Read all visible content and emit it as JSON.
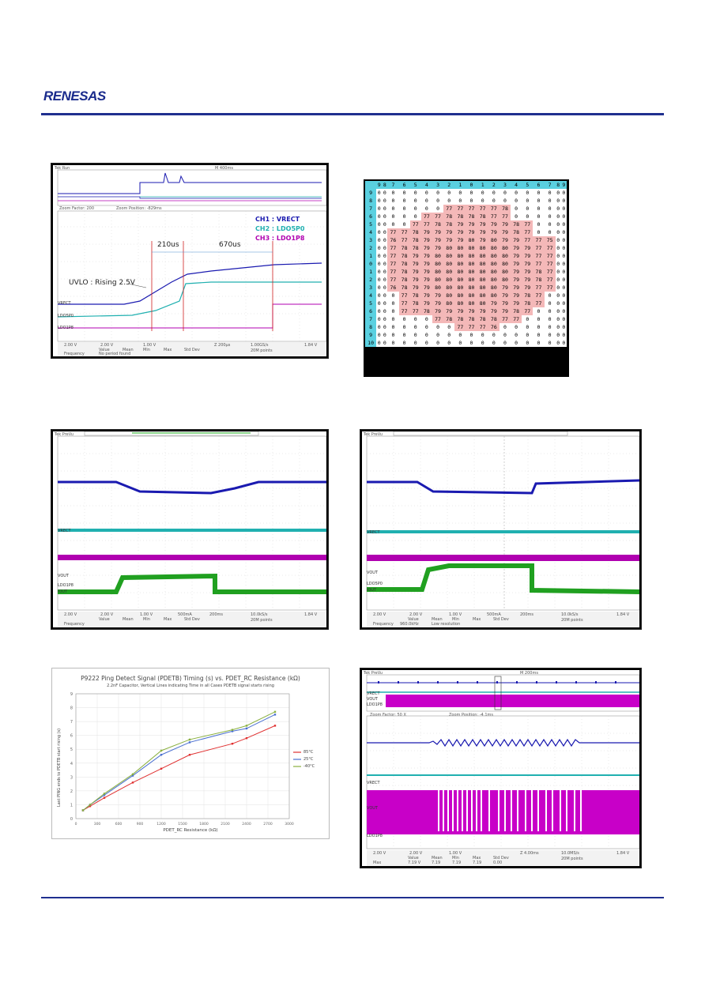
{
  "header": {
    "logo_text": "RENESAS"
  },
  "fig1": {
    "top_bar": "Tek  Run",
    "time_readout": "M 400ms",
    "zoom_factor": "Zoom Factor: 200",
    "zoom_position": "Zoom Position: -829ms",
    "ch_labels": [
      "VRECT",
      "LDO5P0",
      "LDO1P8"
    ],
    "annotations": {
      "t1": "210us",
      "t2": "670us",
      "uvlo": "UVLO : Rising 2.5V"
    },
    "legend": [
      "CH1 : VRECT",
      "CH2 : LDO5P0",
      "CH3 : LDO1P8"
    ],
    "bottom": [
      "2.00 V",
      "2.00 V",
      "1.00 V",
      "Z 200µs",
      "1.00GS/s",
      "20M points",
      "1.84 V"
    ],
    "meas_headers": [
      "Value",
      "Mean",
      "Min",
      "Max",
      "Std Dev"
    ],
    "meas_row": [
      "Frequency",
      "No period found"
    ]
  },
  "heatmap": {
    "columns": [
      "9",
      "8",
      "7",
      "6",
      "5",
      "4",
      "3",
      "2",
      "1",
      "0",
      "1",
      "2",
      "3",
      "4",
      "5",
      "6",
      "7",
      "8",
      "9"
    ],
    "rows": [
      {
        "label": "9",
        "cells": [
          "0",
          "0",
          "0",
          "0",
          "0",
          "0",
          "0",
          "0",
          "0",
          "0",
          "0",
          "0",
          "0",
          "0",
          "0",
          "0",
          "0",
          "0",
          "0"
        ]
      },
      {
        "label": "8",
        "cells": [
          "0",
          "0",
          "0",
          "0",
          "0",
          "0",
          "0",
          "0",
          "0",
          "0",
          "0",
          "0",
          "0",
          "0",
          "0",
          "0",
          "0",
          "0",
          "0"
        ]
      },
      {
        "label": "7",
        "cells": [
          "0",
          "0",
          "0",
          "0",
          "0",
          "0",
          "0",
          "77",
          "77",
          "77",
          "77",
          "77",
          "78",
          "0",
          "0",
          "0",
          "0",
          "0",
          "0"
        ]
      },
      {
        "label": "6",
        "cells": [
          "0",
          "0",
          "0",
          "0",
          "0",
          "77",
          "77",
          "78",
          "78",
          "78",
          "78",
          "77",
          "77",
          "0",
          "0",
          "0",
          "0",
          "0",
          "0"
        ]
      },
      {
        "label": "5",
        "cells": [
          "0",
          "0",
          "0",
          "0",
          "77",
          "77",
          "78",
          "78",
          "79",
          "79",
          "79",
          "79",
          "79",
          "78",
          "77",
          "0",
          "0",
          "0",
          "0"
        ]
      },
      {
        "label": "4",
        "cells": [
          "0",
          "0",
          "77",
          "77",
          "78",
          "79",
          "79",
          "79",
          "79",
          "79",
          "79",
          "79",
          "79",
          "78",
          "77",
          "0",
          "0",
          "0",
          "0"
        ]
      },
      {
        "label": "3",
        "cells": [
          "0",
          "0",
          "76",
          "77",
          "78",
          "79",
          "79",
          "79",
          "79",
          "80",
          "79",
          "80",
          "79",
          "79",
          "77",
          "77",
          "75",
          "0",
          "0"
        ]
      },
      {
        "label": "2",
        "cells": [
          "0",
          "0",
          "77",
          "78",
          "78",
          "79",
          "79",
          "80",
          "80",
          "80",
          "80",
          "80",
          "80",
          "79",
          "79",
          "77",
          "77",
          "0",
          "0"
        ]
      },
      {
        "label": "1",
        "cells": [
          "0",
          "0",
          "77",
          "78",
          "79",
          "79",
          "80",
          "80",
          "80",
          "80",
          "80",
          "80",
          "80",
          "79",
          "79",
          "77",
          "77",
          "0",
          "0"
        ]
      },
      {
        "label": "0",
        "cells": [
          "0",
          "0",
          "77",
          "78",
          "79",
          "79",
          "80",
          "80",
          "80",
          "80",
          "80",
          "80",
          "80",
          "79",
          "79",
          "77",
          "77",
          "0",
          "0"
        ]
      },
      {
        "label": "1",
        "cells": [
          "0",
          "0",
          "77",
          "78",
          "79",
          "79",
          "80",
          "80",
          "80",
          "80",
          "80",
          "80",
          "80",
          "79",
          "79",
          "78",
          "77",
          "0",
          "0"
        ]
      },
      {
        "label": "2",
        "cells": [
          "0",
          "0",
          "77",
          "78",
          "79",
          "79",
          "80",
          "80",
          "80",
          "80",
          "80",
          "80",
          "80",
          "79",
          "79",
          "78",
          "77",
          "0",
          "0"
        ]
      },
      {
        "label": "3",
        "cells": [
          "0",
          "0",
          "76",
          "78",
          "79",
          "79",
          "80",
          "80",
          "80",
          "80",
          "80",
          "80",
          "79",
          "79",
          "79",
          "77",
          "77",
          "0",
          "0"
        ]
      },
      {
        "label": "4",
        "cells": [
          "0",
          "0",
          "0",
          "77",
          "78",
          "79",
          "79",
          "80",
          "80",
          "80",
          "80",
          "80",
          "79",
          "79",
          "78",
          "77",
          "0",
          "0",
          "0"
        ]
      },
      {
        "label": "5",
        "cells": [
          "0",
          "0",
          "0",
          "77",
          "78",
          "79",
          "79",
          "80",
          "80",
          "80",
          "80",
          "79",
          "79",
          "79",
          "78",
          "77",
          "0",
          "0",
          "0"
        ]
      },
      {
        "label": "6",
        "cells": [
          "0",
          "0",
          "0",
          "77",
          "77",
          "78",
          "79",
          "79",
          "79",
          "79",
          "79",
          "79",
          "79",
          "78",
          "77",
          "0",
          "0",
          "0",
          "0"
        ]
      },
      {
        "label": "7",
        "cells": [
          "0",
          "0",
          "0",
          "0",
          "0",
          "0",
          "77",
          "78",
          "78",
          "78",
          "78",
          "78",
          "77",
          "77",
          "0",
          "0",
          "0",
          "0",
          "0"
        ]
      },
      {
        "label": "8",
        "cells": [
          "0",
          "0",
          "0",
          "0",
          "0",
          "0",
          "0",
          "0",
          "77",
          "77",
          "77",
          "76",
          "0",
          "0",
          "0",
          "0",
          "0",
          "0",
          "0"
        ]
      },
      {
        "label": "9",
        "cells": [
          "0",
          "0",
          "0",
          "0",
          "0",
          "0",
          "0",
          "0",
          "0",
          "0",
          "0",
          "0",
          "0",
          "0",
          "0",
          "0",
          "0",
          "0",
          "0"
        ]
      },
      {
        "label": "10",
        "cells": [
          "0",
          "0",
          "0",
          "0",
          "0",
          "0",
          "0",
          "0",
          "0",
          "0",
          "0",
          "0",
          "0",
          "0",
          "0",
          "0",
          "0",
          "0",
          "0"
        ]
      }
    ]
  },
  "fig3": {
    "top_bar": "Tek  PreVu",
    "ch_labels": [
      "VRECT",
      "VOUT",
      "LDO1P8",
      "IOUT"
    ],
    "bottom": [
      "2.00 V",
      "2.00 V",
      "1.00 V",
      "500mA",
      "200ms",
      "10.0kS/s",
      "20M points",
      "1.84 V"
    ],
    "meas_headers": [
      "Value",
      "Mean",
      "Min",
      "Max",
      "Std Dev"
    ],
    "meas_row": [
      "Frequency"
    ]
  },
  "fig4": {
    "top_bar": "Tek  PreVu",
    "ch_labels": [
      "VRECT",
      "VOUT",
      "LDO5P0",
      "IOUT"
    ],
    "bottom": [
      "2.00 V",
      "2.00 V",
      "1.00 V",
      "500mA",
      "200ms",
      "10.0kS/s",
      "20M points",
      "1.84 V"
    ],
    "meas_headers": [
      "Value",
      "Mean",
      "Min",
      "Max",
      "Std Dev"
    ],
    "meas_row": [
      "Frequency",
      "960.0kHz",
      "Low resolution"
    ]
  },
  "fig5": {
    "title": "P9222 Ping Detect Signal (PDETB) Timing (s) vs. PDET_RC Resistance (kΩ)",
    "subtitle": "2.2nF Capacitor, Vertical Lines indicating Time in all Cases PDETB signal starts rising",
    "xlabel": "PDET_RC Resistance (kΩ)",
    "ylabel": "Last PING ends to PDETB start rising (s)",
    "legend": [
      "85°C",
      "25°C",
      "-40°C"
    ]
  },
  "chart_data": {
    "type": "line",
    "title": "P9222 Ping Detect Signal (PDETB) Timing (s) vs. PDET_RC Resistance (kΩ)",
    "xlabel": "PDET_RC Resistance (kΩ)",
    "ylabel": "Last PING ends to PDETB start rising (s)",
    "x": [
      100,
      200,
      400,
      800,
      1200,
      1600,
      2200,
      2400,
      2800
    ],
    "series": [
      {
        "name": "85°C",
        "color": "#e03030",
        "values": [
          0.6,
          0.9,
          1.5,
          2.6,
          3.6,
          4.6,
          5.4,
          5.8,
          6.7
        ]
      },
      {
        "name": "25°C",
        "color": "#4a6fd0",
        "values": [
          0.6,
          1.0,
          1.7,
          3.1,
          4.6,
          5.5,
          6.3,
          6.5,
          7.5
        ]
      },
      {
        "name": "-40°C",
        "color": "#8ab040",
        "values": [
          0.6,
          1.0,
          1.8,
          3.2,
          4.9,
          5.7,
          6.4,
          6.7,
          7.7
        ]
      }
    ],
    "xlim": [
      0,
      3000
    ],
    "ylim": [
      0,
      9
    ],
    "grid": true,
    "legend_position": "right"
  },
  "fig6": {
    "top_bar": "Tek  PreVu",
    "time_readout": "M 200ms",
    "zoom_factor": "Zoom Factor: 50 X",
    "zoom_position": "Zoom Position: -4.1ms",
    "ch_labels": [
      "VRECT",
      "VOUT",
      "LDO1P8"
    ],
    "bottom": [
      "2.00 V",
      "2.00 V",
      "1.00 V",
      "Z 4.00ms",
      "10.0MS/s",
      "20M points",
      "1.84 V"
    ],
    "meas_headers": [
      "Value",
      "Mean",
      "Min",
      "Max",
      "Std Dev"
    ],
    "meas_row": [
      "Max",
      "7.19 V",
      "7.19",
      "7.19",
      "7.19",
      "0.00"
    ]
  }
}
